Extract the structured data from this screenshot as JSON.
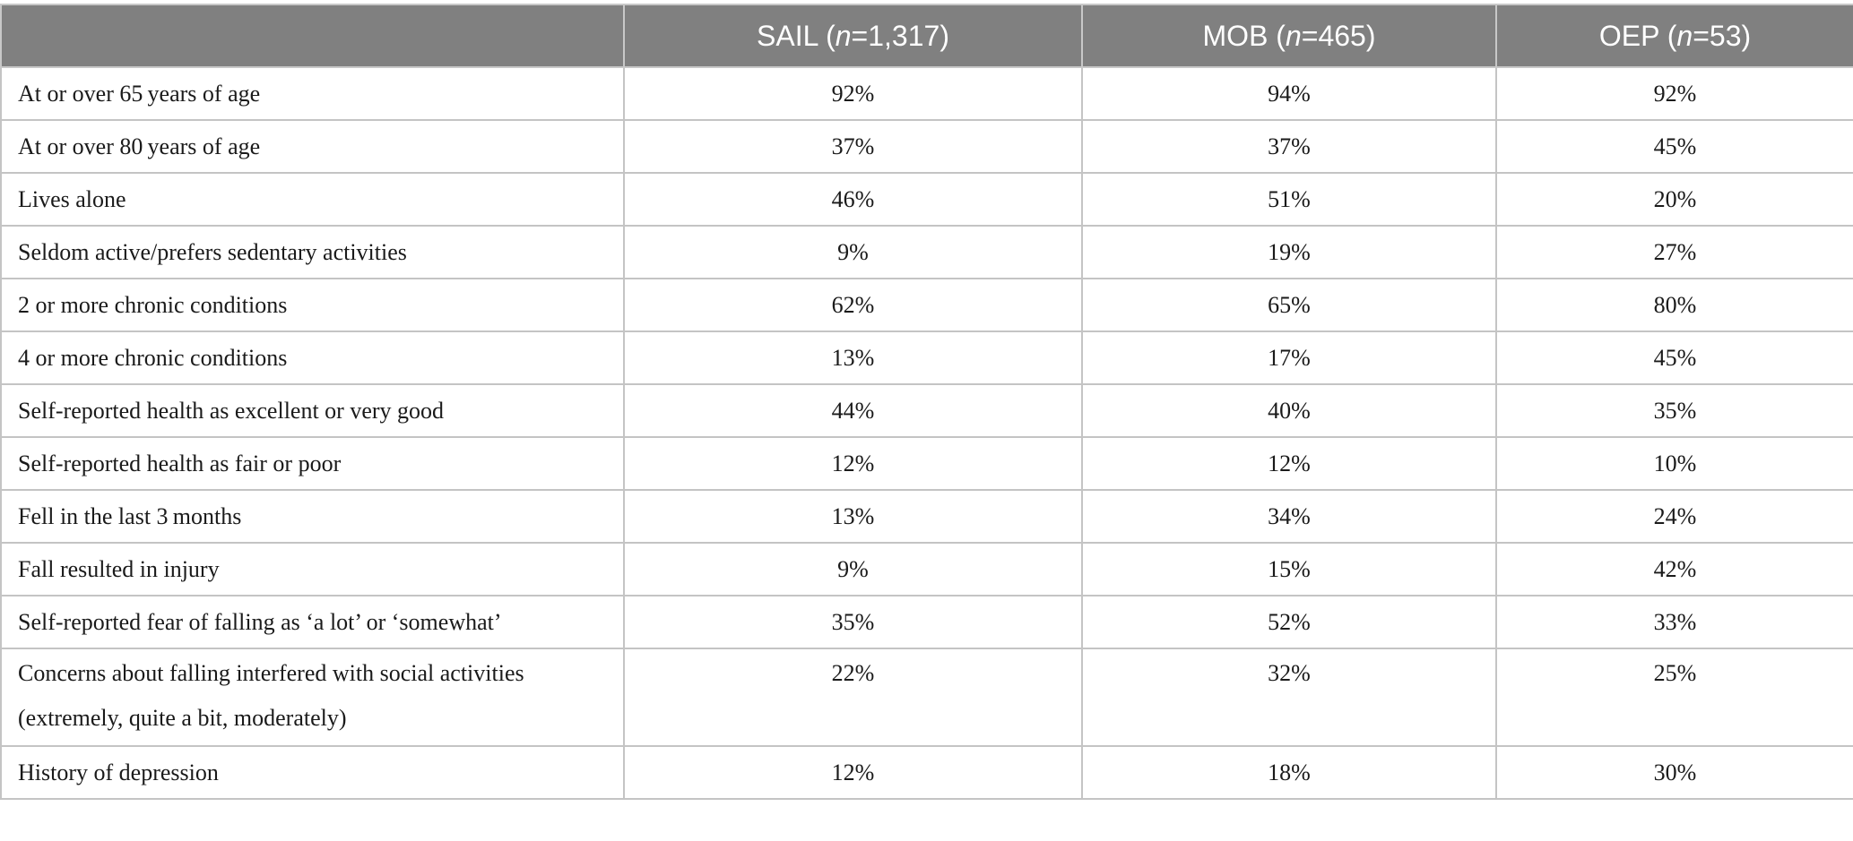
{
  "table": {
    "headers": [
      {
        "prefix": "",
        "n": "",
        "suffix": ""
      },
      {
        "prefix": "SAIL (",
        "n": "n",
        "suffix": "=1,317)"
      },
      {
        "prefix": "MOB (",
        "n": "n",
        "suffix": "=465)"
      },
      {
        "prefix": "OEP (",
        "n": "n",
        "suffix": "=53)"
      }
    ],
    "rows": [
      {
        "label": "At or over 65 years of age",
        "sail": "92%",
        "mob": "94%",
        "oep": "92%"
      },
      {
        "label": "At or over 80 years of age",
        "sail": "37%",
        "mob": "37%",
        "oep": "45%"
      },
      {
        "label": "Lives alone",
        "sail": "46%",
        "mob": "51%",
        "oep": "20%"
      },
      {
        "label": "Seldom active/prefers sedentary activities",
        "sail": "9%",
        "mob": "19%",
        "oep": "27%"
      },
      {
        "label": "2 or more chronic conditions",
        "sail": "62%",
        "mob": "65%",
        "oep": "80%"
      },
      {
        "label": "4 or more chronic conditions",
        "sail": "13%",
        "mob": "17%",
        "oep": "45%"
      },
      {
        "label": "Self-reported health as excellent or very good",
        "sail": "44%",
        "mob": "40%",
        "oep": "35%"
      },
      {
        "label": "Self-reported health as fair or poor",
        "sail": "12%",
        "mob": "12%",
        "oep": "10%"
      },
      {
        "label": "Fell in the last 3 months",
        "sail": "13%",
        "mob": "34%",
        "oep": "24%"
      },
      {
        "label": "Fall resulted in injury",
        "sail": "9%",
        "mob": "15%",
        "oep": "42%"
      },
      {
        "label": "Self-reported fear of falling as ‘a lot’ or ‘somewhat’",
        "sail": "35%",
        "mob": "52%",
        "oep": "33%"
      },
      {
        "label": "Concerns about falling interfered with social activities (extremely, quite a bit, moderately)",
        "sail": "22%",
        "mob": "32%",
        "oep": "25%",
        "tall": true
      },
      {
        "label": "History of depression",
        "sail": "12%",
        "mob": "18%",
        "oep": "30%"
      }
    ]
  },
  "colors": {
    "header_bg": "#808080",
    "header_text": "#ffffff",
    "border": "#c4c4c4"
  }
}
